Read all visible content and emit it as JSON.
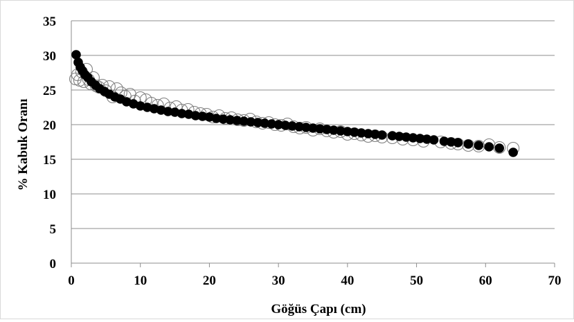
{
  "chart_data": {
    "type": "scatter",
    "title": "",
    "xlabel": "Göğüs Çapı (cm)",
    "ylabel": "% Kabuk Oranı",
    "xlim": [
      0,
      70
    ],
    "ylim": [
      0,
      35
    ],
    "x_ticks": [
      "0",
      "10",
      "20",
      "30",
      "40",
      "50",
      "60",
      "70"
    ],
    "y_ticks": [
      "0",
      "5",
      "10",
      "15",
      "20",
      "25",
      "30",
      "35"
    ],
    "grid": "horizontal",
    "legend": "none",
    "colors": {
      "observed": "#7f7f7f",
      "predicted": "#000000",
      "grid": "#8c8c8c"
    },
    "series": [
      {
        "marker": "open-circle",
        "x": [
          0.6,
          0.9,
          1.2,
          1.5,
          1.8,
          2.2,
          2.5,
          2.8,
          3.2,
          3.6,
          4.0,
          4.5,
          5.0,
          5.5,
          6.0,
          6.6,
          7.2,
          7.8,
          8.5,
          9.2,
          10.0,
          10.8,
          11.6,
          12.5,
          13.4,
          14.3,
          15.2,
          16.0,
          16.9,
          17.8,
          18.7,
          19.6,
          20.5,
          21.4,
          22.3,
          23.2,
          24.1,
          25.0,
          25.9,
          26.8,
          27.7,
          28.6,
          29.5,
          30.4,
          31.3,
          32.2,
          33.1,
          34.0,
          35.0,
          36.0,
          37.0,
          38.0,
          39.0,
          40.0,
          41.0,
          42.0,
          43.0,
          44.0,
          45.0,
          46.5,
          48.0,
          49.5,
          51.0,
          53.5,
          55.0,
          56.0,
          57.5,
          59.0,
          60.5,
          62.0,
          64.0
        ],
        "y": [
          26.6,
          27.2,
          26.4,
          27.6,
          26.2,
          28.0,
          26.5,
          25.9,
          26.8,
          25.6,
          25.4,
          25.7,
          24.9,
          25.5,
          24.0,
          25.2,
          24.6,
          24.1,
          24.4,
          23.4,
          23.9,
          23.6,
          23.1,
          22.8,
          23.0,
          22.4,
          22.6,
          22.1,
          22.2,
          21.8,
          21.6,
          21.5,
          21.1,
          21.3,
          20.9,
          21.0,
          20.7,
          20.6,
          20.8,
          20.4,
          20.2,
          20.3,
          20.0,
          19.9,
          20.1,
          19.7,
          19.5,
          19.6,
          19.2,
          19.4,
          19.1,
          18.9,
          19.0,
          18.6,
          18.7,
          18.5,
          18.3,
          18.4,
          18.2,
          18.1,
          17.9,
          17.8,
          17.6,
          17.5,
          17.3,
          17.2,
          17.0,
          16.9,
          17.1,
          16.7,
          16.6
        ]
      },
      {
        "marker": "filled-circle",
        "x": [
          0.7,
          1.0,
          1.3,
          1.6,
          2.0,
          2.4,
          2.9,
          3.5,
          4.1,
          4.8,
          5.5,
          6.3,
          7.1,
          8.0,
          9.0,
          10.0,
          11.0,
          12.0,
          13.0,
          14.0,
          15.0,
          16.0,
          17.0,
          18.0,
          19.0,
          20.0,
          21.0,
          22.0,
          23.0,
          24.0,
          25.0,
          26.0,
          27.0,
          28.0,
          29.0,
          30.0,
          31.0,
          32.0,
          33.0,
          34.0,
          35.0,
          36.0,
          37.0,
          38.0,
          39.0,
          40.0,
          41.0,
          42.0,
          43.0,
          44.0,
          45.0,
          46.5,
          47.5,
          48.5,
          49.5,
          50.5,
          51.5,
          52.5,
          54.0,
          55.0,
          56.0,
          57.5,
          59.0,
          60.5,
          62.0,
          64.0
        ],
        "y": [
          30.1,
          29.0,
          28.3,
          27.8,
          27.2,
          26.8,
          26.2,
          25.7,
          25.2,
          24.8,
          24.4,
          24.0,
          23.7,
          23.3,
          23.0,
          22.7,
          22.5,
          22.3,
          22.1,
          21.9,
          21.8,
          21.6,
          21.5,
          21.3,
          21.2,
          21.1,
          20.9,
          20.8,
          20.7,
          20.6,
          20.5,
          20.4,
          20.3,
          20.2,
          20.1,
          20.0,
          19.9,
          19.8,
          19.7,
          19.6,
          19.5,
          19.4,
          19.3,
          19.2,
          19.1,
          19.0,
          18.9,
          18.8,
          18.7,
          18.6,
          18.5,
          18.4,
          18.3,
          18.2,
          18.1,
          18.0,
          17.9,
          17.8,
          17.6,
          17.5,
          17.4,
          17.2,
          17.0,
          16.8,
          16.6,
          16.0
        ]
      }
    ]
  }
}
